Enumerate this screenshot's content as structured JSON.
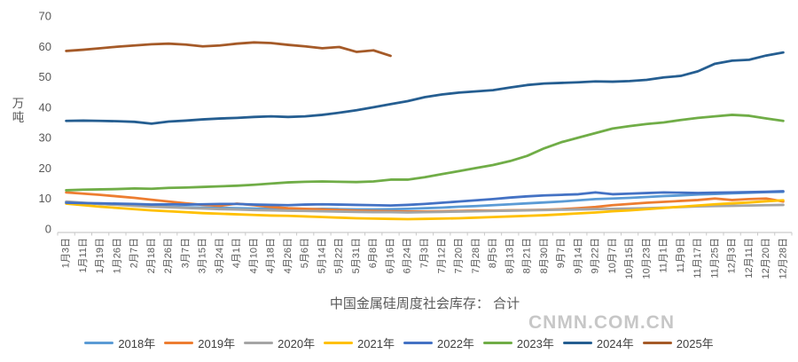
{
  "watermark": "CNMN.COM.CN",
  "colors": {
    "background": "#FFFFFF",
    "axis": "#BFBFBF",
    "axis_tick": "#C9C9C9",
    "tick_label": "#595959",
    "title": "#595959",
    "watermark": "#9B9B9B"
  },
  "chart_data": {
    "type": "line",
    "title": "中国金属硅周度社会库存： 合计",
    "xlabel": "",
    "ylabel": "万吨",
    "ylim": [
      0,
      70
    ],
    "yticks": [
      0,
      10,
      20,
      30,
      40,
      50,
      60,
      70
    ],
    "grid": false,
    "legend_position": "bottom",
    "categories": [
      "1月3日",
      "1月11日",
      "1月19日",
      "1月26日",
      "2月7日",
      "2月18日",
      "2月26日",
      "3月7日",
      "3月15日",
      "3月24日",
      "4月1日",
      "4月10日",
      "4月18日",
      "4月26日",
      "5月6日",
      "5月14日",
      "5月22日",
      "5月31日",
      "6月8日",
      "6月16日",
      "6月24日",
      "7月3日",
      "7月12日",
      "7月20日",
      "7月28日",
      "8月5日",
      "8月13日",
      "8月21日",
      "8月30日",
      "9月7日",
      "9月14日",
      "9月22日",
      "10月7日",
      "10月15日",
      "10月23日",
      "11月1日",
      "11月9日",
      "11月17日",
      "11月25日",
      "12月3日",
      "12月11日",
      "12月20日",
      "12月28日"
    ],
    "series": [
      {
        "name": "2018年",
        "color": "#5B9BD5",
        "values": [
          8.8,
          8.5,
          8.2,
          8.0,
          7.8,
          7.5,
          7.3,
          7.1,
          7.0,
          6.9,
          6.8,
          6.7,
          6.6,
          6.5,
          6.5,
          6.6,
          6.5,
          6.4,
          6.4,
          6.5,
          6.6,
          6.8,
          7.0,
          7.3,
          7.5,
          7.8,
          8.1,
          8.4,
          8.7,
          9.0,
          9.4,
          9.8,
          10.0,
          10.2,
          10.5,
          10.8,
          11.0,
          11.3,
          11.5,
          11.7,
          11.9,
          12.1,
          12.2
        ]
      },
      {
        "name": "2019年",
        "color": "#ED7D31",
        "values": [
          12.0,
          11.6,
          11.2,
          10.7,
          10.2,
          9.6,
          9.0,
          8.4,
          7.9,
          7.6,
          8.3,
          7.8,
          7.2,
          6.8,
          6.6,
          6.4,
          6.2,
          6.0,
          5.9,
          5.8,
          5.7,
          5.7,
          5.8,
          5.9,
          6.0,
          6.0,
          6.1,
          6.2,
          6.3,
          6.5,
          6.8,
          7.2,
          7.8,
          8.2,
          8.6,
          8.9,
          9.2,
          9.5,
          10.0,
          9.5,
          9.8,
          10.0,
          9.0
        ]
      },
      {
        "name": "2020年",
        "color": "#A5A5A5",
        "values": [
          9.0,
          8.6,
          8.2,
          7.9,
          7.6,
          7.3,
          7.1,
          6.9,
          6.7,
          6.5,
          6.4,
          6.2,
          6.1,
          6.0,
          5.9,
          5.8,
          5.7,
          5.6,
          5.5,
          5.5,
          5.4,
          5.5,
          5.6,
          5.7,
          5.8,
          5.9,
          6.0,
          6.1,
          6.2,
          6.3,
          6.4,
          6.5,
          6.6,
          6.7,
          6.8,
          7.0,
          7.2,
          7.4,
          7.5,
          7.6,
          7.7,
          7.8,
          7.9
        ]
      },
      {
        "name": "2021年",
        "color": "#FFC000",
        "values": [
          8.3,
          7.8,
          7.3,
          6.9,
          6.5,
          6.1,
          5.8,
          5.5,
          5.2,
          5.0,
          4.8,
          4.6,
          4.4,
          4.3,
          4.1,
          3.9,
          3.7,
          3.5,
          3.4,
          3.3,
          3.2,
          3.3,
          3.4,
          3.5,
          3.7,
          3.9,
          4.1,
          4.3,
          4.5,
          4.8,
          5.1,
          5.4,
          5.8,
          6.1,
          6.5,
          6.9,
          7.3,
          7.7,
          8.1,
          8.4,
          8.7,
          9.1,
          9.4
        ]
      },
      {
        "name": "2022年",
        "color": "#4472C4",
        "values": [
          8.6,
          8.5,
          8.4,
          8.3,
          8.2,
          8.0,
          8.1,
          8.0,
          8.1,
          8.2,
          8.2,
          8.0,
          7.9,
          7.8,
          8.0,
          8.1,
          8.0,
          7.9,
          7.8,
          7.7,
          7.9,
          8.2,
          8.6,
          9.0,
          9.4,
          9.8,
          10.3,
          10.7,
          11.0,
          11.2,
          11.4,
          12.0,
          11.4,
          11.6,
          11.8,
          12.0,
          11.9,
          11.8,
          11.9,
          12.0,
          12.1,
          12.2,
          12.4
        ]
      },
      {
        "name": "2023年",
        "color": "#70AD47",
        "values": [
          12.7,
          12.9,
          13.0,
          13.1,
          13.3,
          13.2,
          13.5,
          13.6,
          13.8,
          14.0,
          14.2,
          14.5,
          14.9,
          15.3,
          15.5,
          15.6,
          15.5,
          15.4,
          15.6,
          16.2,
          16.2,
          17.0,
          18.0,
          19.0,
          20.0,
          21.0,
          22.3,
          24.0,
          26.5,
          28.5,
          30.0,
          31.5,
          33.0,
          33.8,
          34.5,
          35.0,
          35.8,
          36.5,
          37.0,
          37.5,
          37.2,
          36.3,
          35.5
        ]
      },
      {
        "name": "2024年",
        "color": "#255E91",
        "values": [
          35.5,
          35.6,
          35.5,
          35.4,
          35.2,
          34.6,
          35.3,
          35.6,
          36.0,
          36.3,
          36.5,
          36.8,
          37.0,
          36.8,
          37.0,
          37.5,
          38.2,
          39.0,
          40.0,
          41.0,
          42.0,
          43.3,
          44.2,
          44.8,
          45.2,
          45.6,
          46.5,
          47.3,
          47.8,
          48.0,
          48.2,
          48.5,
          48.4,
          48.6,
          49.0,
          49.8,
          50.3,
          51.8,
          54.3,
          55.3,
          55.6,
          57.0,
          58.0
        ]
      },
      {
        "name": "2025年",
        "color": "#A55A28",
        "values": [
          58.5,
          58.9,
          59.4,
          59.9,
          60.3,
          60.7,
          60.9,
          60.6,
          60.0,
          60.3,
          60.9,
          61.3,
          61.1,
          60.5,
          60.0,
          59.4,
          59.8,
          58.2,
          58.7,
          56.9,
          null,
          null,
          null,
          null,
          null,
          null,
          null,
          null,
          null,
          null,
          null,
          null,
          null,
          null,
          null,
          null,
          null,
          null,
          null,
          null,
          null,
          null,
          null
        ]
      }
    ]
  }
}
